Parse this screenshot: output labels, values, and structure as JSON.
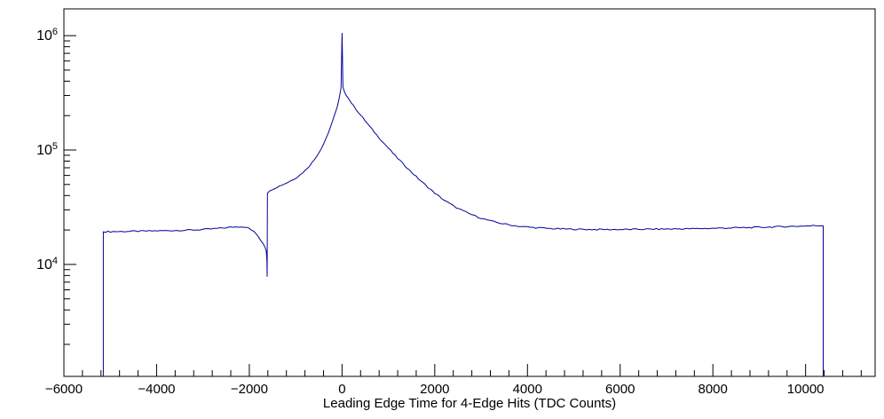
{
  "chart_data": {
    "type": "line",
    "title": "",
    "xlabel": "Leading Edge Time for 4-Edge Hits (TDC Counts)",
    "ylabel": "",
    "xlim": [
      -6000,
      11500
    ],
    "ylim": [
      1050,
      1714000
    ],
    "yscale": "log",
    "grid": false,
    "legend": false,
    "line_color": "#000099",
    "frame_color": "#000000",
    "background_color": "#ffffff",
    "x_major_step": 2000,
    "x_minor_step": 400,
    "x_tick_labels": [
      {
        "value": -6000,
        "label": "−6000"
      },
      {
        "value": -4000,
        "label": "−4000"
      },
      {
        "value": -2000,
        "label": "−2000"
      },
      {
        "value": 0,
        "label": "0"
      },
      {
        "value": 2000,
        "label": "2000"
      },
      {
        "value": 4000,
        "label": "4000"
      },
      {
        "value": 6000,
        "label": "6000"
      },
      {
        "value": 8000,
        "label": "8000"
      },
      {
        "value": 10000,
        "label": "10000"
      }
    ],
    "y_tick_labels": [
      {
        "value": 10000,
        "base": "10",
        "exp": "4"
      },
      {
        "value": 100000,
        "base": "10",
        "exp": "5"
      },
      {
        "value": 1000000,
        "base": "10",
        "exp": "6"
      }
    ],
    "points": [
      [
        -5150,
        1050
      ],
      [
        -5150,
        19300
      ],
      [
        -5000,
        19350
      ],
      [
        -4700,
        19420
      ],
      [
        -4400,
        19500
      ],
      [
        -4100,
        19600
      ],
      [
        -3800,
        19720
      ],
      [
        -3500,
        19850
      ],
      [
        -3200,
        20000
      ],
      [
        -2950,
        20250
      ],
      [
        -2700,
        20600
      ],
      [
        -2450,
        21050
      ],
      [
        -2300,
        21300
      ],
      [
        -2200,
        21400
      ],
      [
        -2100,
        21250
      ],
      [
        -2000,
        20600
      ],
      [
        -1900,
        19300
      ],
      [
        -1820,
        17800
      ],
      [
        -1750,
        16200
      ],
      [
        -1700,
        15200
      ],
      [
        -1660,
        14200
      ],
      [
        -1635,
        13200
      ],
      [
        -1622,
        11000
      ],
      [
        -1616,
        7800
      ],
      [
        -1610,
        42000
      ],
      [
        -1500,
        45500
      ],
      [
        -1400,
        47500
      ],
      [
        -1300,
        49500
      ],
      [
        -1200,
        51500
      ],
      [
        -1100,
        54000
      ],
      [
        -1000,
        57000
      ],
      [
        -900,
        61000
      ],
      [
        -800,
        66000
      ],
      [
        -700,
        73000
      ],
      [
        -600,
        82000
      ],
      [
        -500,
        95000
      ],
      [
        -400,
        113000
      ],
      [
        -300,
        140000
      ],
      [
        -200,
        180000
      ],
      [
        -150,
        207000
      ],
      [
        -100,
        243000
      ],
      [
        -60,
        285000
      ],
      [
        -30,
        330000
      ],
      [
        -20,
        355000
      ],
      [
        0,
        1050000
      ],
      [
        20,
        350000
      ],
      [
        60,
        320000
      ],
      [
        100,
        300000
      ],
      [
        150,
        278000
      ],
      [
        200,
        259000
      ],
      [
        300,
        228000
      ],
      [
        400,
        202000
      ],
      [
        500,
        180000
      ],
      [
        600,
        160000
      ],
      [
        700,
        143000
      ],
      [
        800,
        128000
      ],
      [
        900,
        115000
      ],
      [
        1000,
        104000
      ],
      [
        1150,
        89000
      ],
      [
        1300,
        77000
      ],
      [
        1450,
        67000
      ],
      [
        1600,
        58500
      ],
      [
        1750,
        51500
      ],
      [
        1900,
        45500
      ],
      [
        2050,
        40500
      ],
      [
        2200,
        36500
      ],
      [
        2400,
        32500
      ],
      [
        2600,
        29500
      ],
      [
        2800,
        27200
      ],
      [
        3000,
        25400
      ],
      [
        3200,
        24000
      ],
      [
        3400,
        23000
      ],
      [
        3600,
        22200
      ],
      [
        3800,
        21600
      ],
      [
        4000,
        21200
      ],
      [
        4300,
        20800
      ],
      [
        4600,
        20500
      ],
      [
        5000,
        20300
      ],
      [
        5500,
        20200
      ],
      [
        6000,
        20200
      ],
      [
        6500,
        20300
      ],
      [
        7000,
        20400
      ],
      [
        7500,
        20500
      ],
      [
        8000,
        20700
      ],
      [
        8500,
        20900
      ],
      [
        9000,
        21100
      ],
      [
        9500,
        21400
      ],
      [
        10000,
        21700
      ],
      [
        10380,
        21900
      ],
      [
        10380,
        1050
      ]
    ]
  }
}
